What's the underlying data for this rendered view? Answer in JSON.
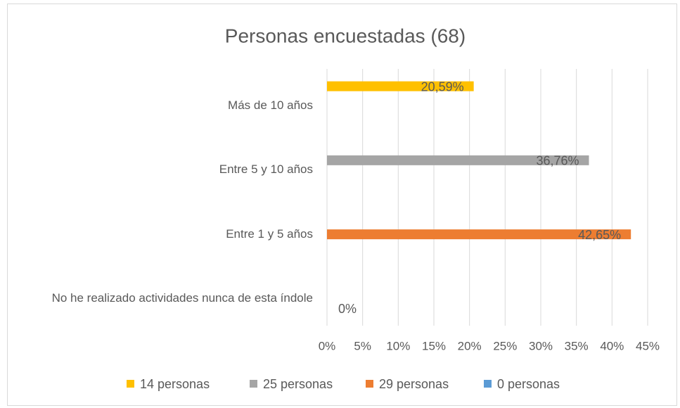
{
  "chart_data": {
    "type": "bar",
    "orientation": "horizontal",
    "title": "Personas encuestadas (68)",
    "categories": [
      "Más de 10 años",
      "Entre 5 y 10 años",
      "Entre 1 y 5 años",
      "No he realizado actividades nunca de esta índole"
    ],
    "series": [
      {
        "name": "14 personas",
        "color": "#FFC000",
        "values": [
          20.59,
          null,
          null,
          null
        ],
        "value_labels": [
          "20,59%",
          null,
          null,
          null
        ]
      },
      {
        "name": "25 personas",
        "color": "#A5A5A5",
        "values": [
          null,
          36.76,
          null,
          null
        ],
        "value_labels": [
          null,
          "36,76%",
          null,
          null
        ]
      },
      {
        "name": "29 personas",
        "color": "#ED7D31",
        "values": [
          null,
          null,
          42.65,
          null
        ],
        "value_labels": [
          null,
          null,
          "42,65%",
          null
        ]
      },
      {
        "name": "0 personas",
        "color": "#5B9BD5",
        "values": [
          null,
          null,
          null,
          0
        ],
        "value_labels": [
          null,
          null,
          null,
          "0%"
        ]
      }
    ],
    "xlim": [
      0,
      45
    ],
    "xticks": [
      {
        "value": 0,
        "label": "0%"
      },
      {
        "value": 5,
        "label": "5%"
      },
      {
        "value": 10,
        "label": "10%"
      },
      {
        "value": 15,
        "label": "15%"
      },
      {
        "value": 20,
        "label": "20%"
      },
      {
        "value": 25,
        "label": "25%"
      },
      {
        "value": 30,
        "label": "30%"
      },
      {
        "value": 35,
        "label": "35%"
      },
      {
        "value": 40,
        "label": "40%"
      },
      {
        "value": 45,
        "label": "45%"
      }
    ],
    "grid": true,
    "legend": "bottom"
  }
}
